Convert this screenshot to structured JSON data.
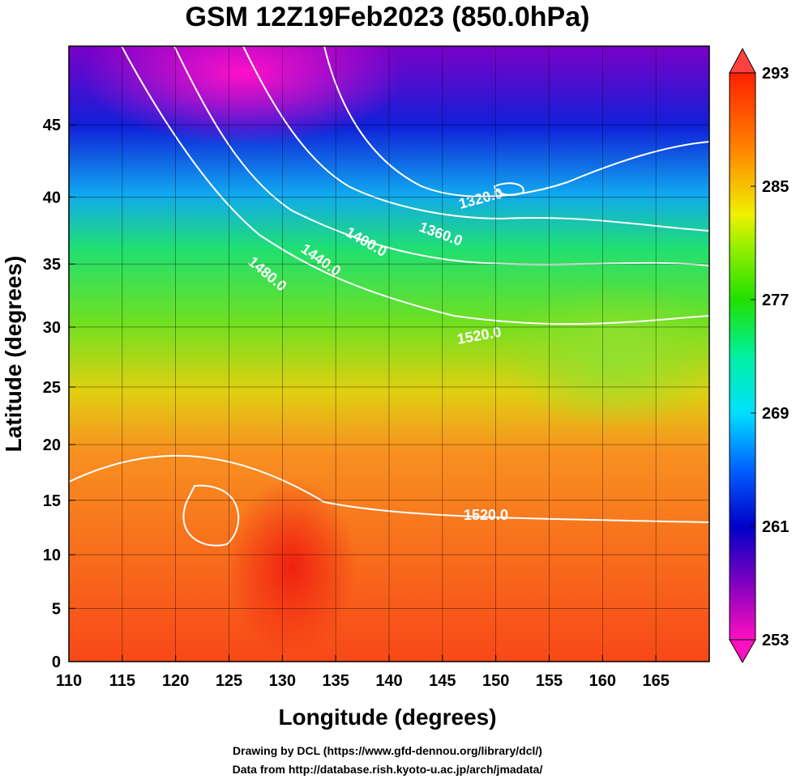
{
  "title": "GSM 12Z19Feb2023 (850.0hPa)",
  "map": {
    "xlabel": "Longitude (degrees)",
    "ylabel": "Latitude  (degrees)",
    "xlim": [
      110,
      170
    ],
    "ylim": [
      0,
      50
    ],
    "projection": "mercator",
    "xticks": [
      110,
      115,
      120,
      125,
      130,
      135,
      140,
      145,
      150,
      155,
      160,
      165
    ],
    "yticks": [
      0,
      5,
      10,
      15,
      20,
      25,
      30,
      35,
      40,
      45
    ]
  },
  "colorbar": {
    "lim": [
      253,
      293
    ],
    "ticks": [
      253,
      261,
      269,
      277,
      285,
      293
    ]
  },
  "contour_labels": [
    "1320.0",
    "1360.0",
    "1400.0",
    "1440.0",
    "1480.0",
    "1520.0",
    "1520.0"
  ],
  "footer": [
    "Drawing by DCL (https://www.gfd-dennou.org/library/dcl/)",
    "Data from http://database.rish.kyoto-u.ac.jp/arch/jmadata/"
  ]
}
